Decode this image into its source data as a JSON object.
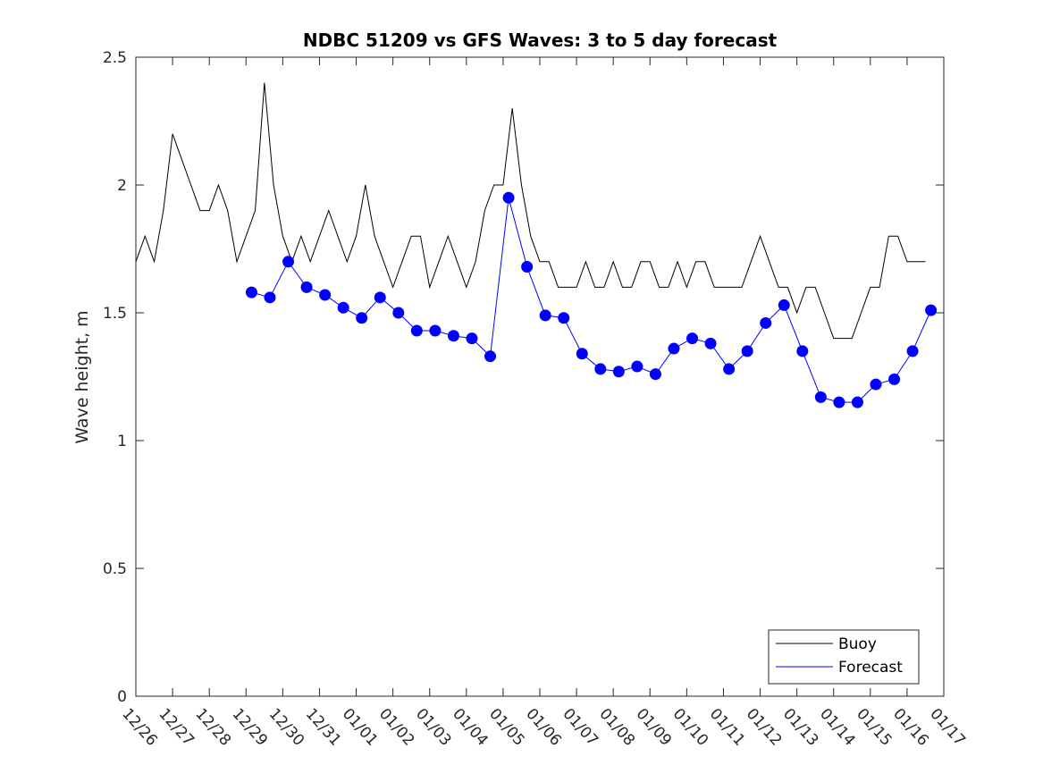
{
  "chart_data": {
    "type": "line",
    "title": "NDBC 51209 vs GFS Waves: 3 to 5 day forecast",
    "xlabel": "",
    "ylabel": "Wave height, m",
    "ylim": [
      0,
      2.5
    ],
    "yticks": [
      "0",
      "0.5",
      "1",
      "1.5",
      "2",
      "2.5"
    ],
    "x_start_day": 0,
    "x_end_day": 22,
    "categories": [
      "12/26",
      "12/27",
      "12/28",
      "12/29",
      "12/30",
      "12/31",
      "01/01",
      "01/02",
      "01/03",
      "01/04",
      "01/05",
      "01/06",
      "01/07",
      "01/08",
      "01/09",
      "01/10",
      "01/11",
      "01/12",
      "01/13",
      "01/14",
      "01/15",
      "01/16",
      "01/17"
    ],
    "legend": {
      "position": "bottom-right",
      "entries": [
        "Buoy",
        "Forecast"
      ]
    },
    "colors": {
      "buoy": "#000000",
      "forecast": "#0000ff"
    },
    "series": [
      {
        "name": "Buoy",
        "x": [
          0,
          0.25,
          0.5,
          0.75,
          1.0,
          1.25,
          1.5,
          1.75,
          2.0,
          2.25,
          2.5,
          2.75,
          3.0,
          3.25,
          3.5,
          3.75,
          4.0,
          4.25,
          4.5,
          4.75,
          5.0,
          5.25,
          5.5,
          5.75,
          6.0,
          6.25,
          6.5,
          6.75,
          7.0,
          7.25,
          7.5,
          7.75,
          8.0,
          8.25,
          8.5,
          8.75,
          9.0,
          9.25,
          9.5,
          9.75,
          10.0,
          10.25,
          10.5,
          10.75,
          11.0,
          11.25,
          11.5,
          11.75,
          12.0,
          12.25,
          12.5,
          12.75,
          13.0,
          13.25,
          13.5,
          13.75,
          14.0,
          14.25,
          14.5,
          14.75,
          15.0,
          15.25,
          15.5,
          15.75,
          16.0,
          16.25,
          16.5,
          16.75,
          17.0,
          17.25,
          17.5,
          17.75,
          18.0,
          18.25,
          18.5,
          18.75,
          19.0,
          19.25,
          19.5,
          19.75,
          20.0,
          20.25,
          20.5,
          20.75,
          21.0,
          21.25,
          21.5
        ],
        "values": [
          1.7,
          1.8,
          1.7,
          1.9,
          2.2,
          2.1,
          2.0,
          1.9,
          1.9,
          2.0,
          1.9,
          1.7,
          1.8,
          1.9,
          2.4,
          2.0,
          1.8,
          1.7,
          1.8,
          1.7,
          1.8,
          1.9,
          1.8,
          1.7,
          1.8,
          2.0,
          1.8,
          1.7,
          1.6,
          1.7,
          1.8,
          1.8,
          1.6,
          1.7,
          1.8,
          1.7,
          1.6,
          1.7,
          1.9,
          2.0,
          2.0,
          2.3,
          2.0,
          1.8,
          1.7,
          1.7,
          1.6,
          1.6,
          1.6,
          1.7,
          1.6,
          1.6,
          1.7,
          1.6,
          1.6,
          1.7,
          1.7,
          1.6,
          1.6,
          1.7,
          1.6,
          1.7,
          1.7,
          1.6,
          1.6,
          1.6,
          1.6,
          1.7,
          1.8,
          1.7,
          1.6,
          1.6,
          1.5,
          1.6,
          1.6,
          1.5,
          1.4,
          1.4,
          1.4,
          1.5,
          1.6,
          1.6,
          1.8,
          1.8,
          1.7,
          1.7,
          1.7
        ]
      },
      {
        "name": "Forecast",
        "x": [
          3.15,
          3.65,
          4.15,
          4.65,
          5.15,
          5.65,
          6.15,
          6.65,
          7.15,
          7.65,
          8.15,
          8.65,
          9.15,
          9.65,
          10.15,
          10.65,
          11.15,
          11.65,
          12.15,
          12.65,
          13.15,
          13.65,
          14.15,
          14.65,
          15.15,
          15.65,
          16.15,
          16.65,
          17.15,
          17.65,
          18.15,
          18.65,
          19.15,
          19.65,
          20.15,
          20.65,
          21.15,
          21.65
        ],
        "values": [
          1.58,
          1.56,
          1.7,
          1.6,
          1.57,
          1.52,
          1.48,
          1.56,
          1.5,
          1.43,
          1.43,
          1.41,
          1.4,
          1.33,
          1.95,
          1.68,
          1.49,
          1.48,
          1.34,
          1.28,
          1.27,
          1.29,
          1.26,
          1.36,
          1.4,
          1.38,
          1.28,
          1.35,
          1.46,
          1.53,
          1.35,
          1.17,
          1.15,
          1.15,
          1.22,
          1.24,
          1.35,
          1.51
        ]
      }
    ]
  }
}
